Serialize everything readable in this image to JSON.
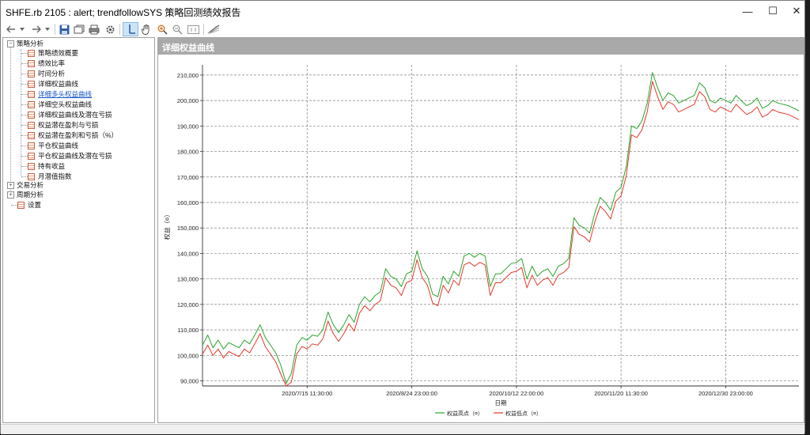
{
  "window": {
    "title": "SHFE.rb 2105 : alert; trendfollowSYS 策略回测绩效报告",
    "controls": {
      "minimize": "—",
      "maximize": "☐",
      "close": "✕"
    }
  },
  "toolbar": {
    "icons": [
      "back-arrow-icon",
      "dropdown-icon",
      "forward-arrow-icon",
      "dropdown-icon",
      "save-icon",
      "export-icon",
      "print-icon",
      "settings-icon",
      "crosshair-icon",
      "hand-icon",
      "zoom-in-icon",
      "zoom-out-icon",
      "fit-icon",
      "chart-style-icon"
    ]
  },
  "tree": {
    "groups": [
      {
        "label": "策略分析",
        "expanded": true,
        "items": [
          "策略绩效概要",
          "绩效比率",
          "时间分析",
          "详细权益曲线",
          "详细多头权益曲线",
          "详细空头权益曲线",
          "详细权益曲线及潜在亏损",
          "权益潜在盈利与亏损",
          "权益潜在盈利和亏损（%）",
          "平仓权益曲线",
          "平仓权益曲线及潜在亏损",
          "持有收益",
          "月潜值指数"
        ]
      },
      {
        "label": "交易分析",
        "expanded": false,
        "items": []
      },
      {
        "label": "周期分析",
        "expanded": false,
        "items": []
      }
    ],
    "settings_label": "设置",
    "selected_item": "详细多头权益曲线"
  },
  "panel": {
    "title": "详细权益曲线"
  },
  "chart_data": {
    "type": "line",
    "title": "",
    "xlabel": "日期",
    "ylabel": "权益（¤）",
    "ylim": [
      88000,
      214000
    ],
    "yticks": [
      90000,
      100000,
      110000,
      120000,
      130000,
      140000,
      150000,
      160000,
      170000,
      180000,
      190000,
      200000,
      210000
    ],
    "ytick_labels": [
      "90,000",
      "100,000",
      "110,000",
      "120,000",
      "130,000",
      "140,000",
      "150,000",
      "160,000",
      "170,000",
      "180,000",
      "190,000",
      "200,000",
      "210,000"
    ],
    "xtick_labels": [
      "2020/7/15 11:30:00",
      "2020/8/24 23:00:00",
      "2020/10/12 22:00:00",
      "2020/11/20 11:30:00",
      "2020/12/30 23:00:00"
    ],
    "xtick_positions": [
      0.2,
      0.4,
      0.6,
      0.8,
      1.0
    ],
    "x": [
      0,
      0.01,
      0.02,
      0.03,
      0.04,
      0.05,
      0.06,
      0.07,
      0.08,
      0.09,
      0.1,
      0.11,
      0.12,
      0.13,
      0.14,
      0.15,
      0.16,
      0.17,
      0.18,
      0.19,
      0.2,
      0.21,
      0.22,
      0.23,
      0.24,
      0.25,
      0.26,
      0.27,
      0.28,
      0.29,
      0.3,
      0.31,
      0.32,
      0.33,
      0.34,
      0.35,
      0.36,
      0.37,
      0.38,
      0.39,
      0.4,
      0.41,
      0.42,
      0.43,
      0.44,
      0.45,
      0.46,
      0.47,
      0.48,
      0.49,
      0.5,
      0.51,
      0.52,
      0.53,
      0.54,
      0.55,
      0.56,
      0.57,
      0.58,
      0.59,
      0.6,
      0.61,
      0.62,
      0.63,
      0.64,
      0.65,
      0.66,
      0.67,
      0.68,
      0.69,
      0.7,
      0.71,
      0.72,
      0.73,
      0.74,
      0.75,
      0.76,
      0.77,
      0.78,
      0.79,
      0.8,
      0.81,
      0.82,
      0.83,
      0.84,
      0.85,
      0.86,
      0.87,
      0.88,
      0.89,
      0.9,
      0.91,
      0.92,
      0.93,
      0.94,
      0.95,
      0.96,
      0.97,
      0.98,
      0.99,
      1.0,
      1.01,
      1.02,
      1.03,
      1.04,
      1.05,
      1.06,
      1.07,
      1.08,
      1.09,
      1.1,
      1.12,
      1.14
    ],
    "series": [
      {
        "name": "权益高点（¤）",
        "color": "#2aa52a",
        "values": [
          104000,
          108000,
          103000,
          106000,
          102500,
          105000,
          104000,
          103000,
          106000,
          104500,
          108000,
          112000,
          107000,
          104000,
          101000,
          96000,
          89000,
          93000,
          104000,
          107000,
          106000,
          108000,
          107500,
          110000,
          117000,
          112000,
          109000,
          112000,
          116000,
          113000,
          120000,
          123000,
          121000,
          123500,
          125000,
          134000,
          131000,
          130000,
          127000,
          132000,
          133000,
          141000,
          134000,
          131000,
          124000,
          123000,
          131000,
          128000,
          133000,
          131000,
          139000,
          140000,
          138500,
          140000,
          139000,
          127000,
          132000,
          132000,
          134000,
          136000,
          136500,
          138000,
          130000,
          135000,
          131000,
          133000,
          134000,
          131000,
          135000,
          136000,
          138000,
          154000,
          151000,
          150000,
          148000,
          156000,
          162000,
          160000,
          157000,
          164000,
          166000,
          174000,
          190000,
          189000,
          192000,
          199000,
          211000,
          205000,
          200000,
          203000,
          202000,
          199000,
          200000,
          201000,
          202000,
          207000,
          205000,
          200000,
          199000,
          201000,
          200000,
          199000,
          202000,
          200000,
          198000,
          199000,
          201000,
          197000,
          198000,
          200000,
          199000,
          198000,
          196000
        ]
      },
      {
        "name": "权益低点（¤）",
        "color": "#e23a2a",
        "values": [
          100500,
          104000,
          100000,
          102500,
          99000,
          101500,
          100500,
          99500,
          102500,
          101000,
          104500,
          108500,
          103500,
          100500,
          97500,
          92500,
          88000,
          89500,
          100500,
          103500,
          102500,
          104500,
          104000,
          106500,
          113500,
          108500,
          105500,
          108500,
          112500,
          109500,
          116500,
          119500,
          117500,
          120000,
          121500,
          130500,
          127500,
          126500,
          123500,
          128500,
          129500,
          137500,
          130500,
          127500,
          120500,
          119500,
          127500,
          124500,
          129500,
          127500,
          135500,
          136500,
          135000,
          136500,
          135500,
          123500,
          128500,
          128500,
          130500,
          132500,
          133000,
          134500,
          126500,
          131500,
          127500,
          129500,
          130500,
          127500,
          131500,
          132500,
          134500,
          150500,
          147500,
          146500,
          144500,
          152500,
          158500,
          156500,
          153500,
          160500,
          162500,
          170500,
          186500,
          185500,
          188500,
          195500,
          207500,
          201500,
          196500,
          199500,
          198500,
          195500,
          196500,
          197500,
          198500,
          203500,
          201500,
          196500,
          195500,
          197500,
          196500,
          195500,
          198500,
          196500,
          194500,
          195500,
          197500,
          193500,
          194500,
          196500,
          195500,
          194500,
          192500
        ]
      }
    ],
    "legend": "bottom-right",
    "grid": true
  }
}
